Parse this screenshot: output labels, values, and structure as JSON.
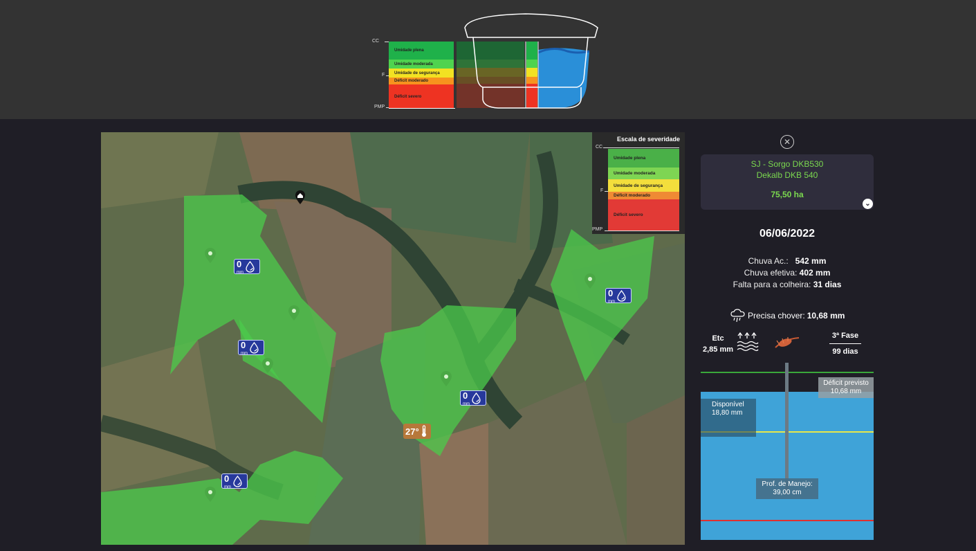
{
  "scale_top": {
    "ticks": {
      "cc": "CC",
      "f": "F",
      "pmp": "PMP"
    },
    "bands": [
      {
        "label": "Umidade plena",
        "color": "#1fb14a"
      },
      {
        "label": "Umidade moderada",
        "color": "#4fd34f"
      },
      {
        "label": "Umidade de segurança",
        "color": "#f2e222"
      },
      {
        "label": "Déficit moderado",
        "color": "#f7931e"
      },
      {
        "label": "Déficit severo",
        "color": "#ee3322"
      }
    ]
  },
  "legend": {
    "title": "Escala de severidade",
    "ticks": {
      "cc": "CC",
      "f": "F",
      "pmp": "PMP"
    },
    "bands": [
      {
        "label": "Umidade plena",
        "color": "#4ab048"
      },
      {
        "label": "Umidade moderada",
        "color": "#7ed553"
      },
      {
        "label": "Umidade de segurança",
        "color": "#f3de3c"
      },
      {
        "label": "Déficit moderado",
        "color": "#ef8a34"
      },
      {
        "label": "Déficit severo",
        "color": "#e23a36"
      }
    ]
  },
  "map": {
    "badges": [
      {
        "value": "0",
        "unit": "mm"
      },
      {
        "value": "0",
        "unit": "mm"
      },
      {
        "value": "0",
        "unit": "mm"
      },
      {
        "value": "0",
        "unit": "mm"
      },
      {
        "value": "0",
        "unit": "mm"
      }
    ],
    "temperature": "27°"
  },
  "panel": {
    "field_name_1": "SJ - Sorgo DKB530",
    "field_name_2": "Dekalb DKB 540",
    "area": "75,50 ha",
    "date": "06/06/2022",
    "chuva_ac_label": "Chuva Ac.:",
    "chuva_ac_value": "542 mm",
    "chuva_ef_label": "Chuva efetiva:",
    "chuva_ef_value": "402 mm",
    "colheita_label": "Falta para a colheira:",
    "colheita_value": "31 dias",
    "precisa_label": "Precisa chover:",
    "precisa_value": "10,68 mm",
    "etc_label": "Etc",
    "etc_value": "2,85 mm",
    "phase_label": "3ª Fase",
    "phase_days": "99 dias"
  },
  "soil": {
    "available_label": "Disponível",
    "available_value": "18,80 mm",
    "deficit_label": "Déficit previsto",
    "deficit_value": "10,68 mm",
    "depth_label": "Prof. de Manejo:",
    "depth_value": "39,00 cm"
  }
}
